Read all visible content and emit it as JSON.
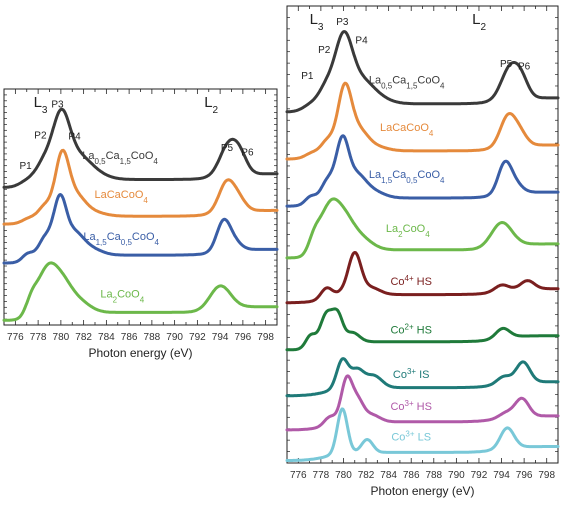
{
  "chart_data": [
    {
      "type": "line",
      "panel": "left",
      "xlabel": "Photon energy (eV)",
      "ylabel": "",
      "xlim": [
        775,
        799
      ],
      "xticks": [
        "776",
        "778",
        "780",
        "782",
        "784",
        "786",
        "788",
        "790",
        "792",
        "794",
        "796",
        "798"
      ],
      "grid": false,
      "legend": "none",
      "edge_labels": [
        {
          "main": "L",
          "sub": "3",
          "x": 777.6
        },
        {
          "main": "L",
          "sub": "2",
          "x": 792.6
        }
      ],
      "peak_labels": [
        {
          "text": "P1",
          "x": 776.9,
          "y": 6.8
        },
        {
          "text": "P2",
          "x": 778.2,
          "y": 8.15
        },
        {
          "text": "P3",
          "x": 779.7,
          "y": 9.5
        },
        {
          "text": "P4",
          "x": 781.2,
          "y": 8.1
        },
        {
          "text": "P5",
          "x": 794.6,
          "y": 7.6
        },
        {
          "text": "P6",
          "x": 796.4,
          "y": 7.4
        }
      ],
      "series": [
        {
          "name": "La0.5Ca1.5CoO4",
          "label_main": "La",
          "label_parts": [
            [
              "La",
              ""
            ],
            [
              "0,5",
              "sub"
            ],
            [
              "Ca",
              ""
            ],
            [
              "1,5",
              "sub"
            ],
            [
              "CoO",
              ""
            ],
            [
              "4",
              "sub"
            ]
          ],
          "label_x": 785.2,
          "label_y": 7.25,
          "color": "#3a3a3a",
          "offset": 6.0,
          "peaks": [
            [
              777.1,
              0.25,
              0.7
            ],
            [
              778.5,
              0.85,
              0.7
            ],
            [
              780.0,
              2.6,
              0.75
            ],
            [
              781.4,
              0.9,
              1.1
            ],
            [
              782.8,
              0.25,
              1.2
            ],
            [
              794.8,
              1.35,
              0.8
            ],
            [
              795.8,
              0.55,
              0.6
            ]
          ]
        },
        {
          "name": "LaCaCoO4",
          "label_parts": [
            [
              "LaCaCoO",
              ""
            ],
            [
              "4",
              "sub"
            ]
          ],
          "label_x": 785.3,
          "label_y": 5.55,
          "color": "#e58a3c",
          "offset": 4.4,
          "peaks": [
            [
              777.2,
              0.2,
              0.6
            ],
            [
              778.6,
              0.6,
              0.6
            ],
            [
              780.1,
              2.6,
              0.6
            ],
            [
              781.3,
              0.8,
              0.8
            ],
            [
              782.6,
              0.2,
              1.1
            ],
            [
              794.6,
              1.3,
              0.7
            ],
            [
              795.7,
              0.4,
              0.6
            ]
          ]
        },
        {
          "name": "La1.5Ca0.5CoO4",
          "label_parts": [
            [
              "La",
              ""
            ],
            [
              "1,5",
              "sub"
            ],
            [
              "Ca",
              ""
            ],
            [
              "0,5",
              "sub"
            ],
            [
              "CoO",
              ""
            ],
            [
              "4",
              "sub"
            ]
          ],
          "label_x": 785.3,
          "label_y": 3.7,
          "color": "#3a5ea6",
          "offset": 2.7,
          "peaks": [
            [
              777.1,
              0.35,
              0.5
            ],
            [
              778.6,
              0.9,
              0.6
            ],
            [
              779.9,
              2.3,
              0.55
            ],
            [
              781.1,
              0.9,
              0.8
            ],
            [
              782.5,
              0.3,
              1.0
            ],
            [
              794.3,
              1.3,
              0.6
            ],
            [
              795.3,
              0.3,
              0.6
            ]
          ]
        },
        {
          "name": "La2CoO4",
          "label_parts": [
            [
              "La",
              ""
            ],
            [
              "2",
              "sub"
            ],
            [
              "CoO",
              ""
            ],
            [
              "4",
              "sub"
            ]
          ],
          "label_x": 785.4,
          "label_y": 1.2,
          "color": "#6cb84a",
          "offset": 0.2,
          "peaks": [
            [
              777.4,
              0.6,
              0.5
            ],
            [
              778.8,
              2.0,
              0.9
            ],
            [
              780.2,
              0.9,
              0.8
            ],
            [
              781.5,
              0.5,
              1.0
            ],
            [
              794.0,
              1.0,
              0.9
            ]
          ]
        }
      ]
    },
    {
      "type": "line",
      "panel": "right",
      "xlabel": "Photon energy (eV)",
      "ylabel": "",
      "xlim": [
        775,
        799
      ],
      "xticks": [
        "776",
        "778",
        "780",
        "782",
        "784",
        "786",
        "788",
        "790",
        "792",
        "794",
        "796",
        "798"
      ],
      "grid": false,
      "legend": "none",
      "edge_labels": [
        {
          "main": "L",
          "sub": "3",
          "x": 777.0
        },
        {
          "main": "L",
          "sub": "2",
          "x": 791.4
        }
      ],
      "peak_labels": [
        {
          "text": "P1",
          "x": 776.8,
          "y": 15.8
        },
        {
          "text": "P2",
          "x": 778.3,
          "y": 16.9
        },
        {
          "text": "P3",
          "x": 779.9,
          "y": 18.1
        },
        {
          "text": "P4",
          "x": 781.6,
          "y": 17.3
        },
        {
          "text": "P5",
          "x": 794.4,
          "y": 16.3
        },
        {
          "text": "P6",
          "x": 796.0,
          "y": 16.2
        }
      ],
      "series": [
        {
          "name": "La0.5Ca1.5CoO4",
          "label_parts": [
            [
              "La",
              ""
            ],
            [
              "0,5",
              "sub"
            ],
            [
              "Ca",
              ""
            ],
            [
              "1,5",
              "sub"
            ],
            [
              "CoO",
              ""
            ],
            [
              "4",
              "sub"
            ]
          ],
          "label_x": 785.6,
          "label_y": 15.6,
          "color": "#3a3a3a",
          "offset": 14.4,
          "peaks": [
            [
              777.1,
              0.25,
              0.7
            ],
            [
              778.5,
              0.85,
              0.7
            ],
            [
              780.0,
              2.6,
              0.75
            ],
            [
              781.4,
              0.9,
              1.1
            ],
            [
              782.8,
              0.25,
              1.2
            ],
            [
              794.8,
              1.35,
              0.8
            ],
            [
              795.8,
              0.55,
              0.6
            ]
          ]
        },
        {
          "name": "LaCaCoO4",
          "label_parts": [
            [
              "LaCaCoO",
              ""
            ],
            [
              "4",
              "sub"
            ]
          ],
          "label_x": 785.6,
          "label_y": 13.6,
          "color": "#e58a3c",
          "offset": 12.4,
          "peaks": [
            [
              777.2,
              0.2,
              0.6
            ],
            [
              778.6,
              0.6,
              0.6
            ],
            [
              780.1,
              2.6,
              0.6
            ],
            [
              781.3,
              0.8,
              0.8
            ],
            [
              782.6,
              0.2,
              1.1
            ],
            [
              794.6,
              1.3,
              0.7
            ],
            [
              795.7,
              0.4,
              0.6
            ]
          ]
        },
        {
          "name": "La1.5Ca0.5CoO4",
          "label_parts": [
            [
              "La",
              ""
            ],
            [
              "1,5",
              "sub"
            ],
            [
              "Ca",
              ""
            ],
            [
              "0,5",
              "sub"
            ],
            [
              "CoO",
              ""
            ],
            [
              "4",
              "sub"
            ]
          ],
          "label_x": 785.6,
          "label_y": 11.6,
          "color": "#3a5ea6",
          "offset": 10.4,
          "peaks": [
            [
              777.1,
              0.35,
              0.5
            ],
            [
              778.6,
              0.9,
              0.6
            ],
            [
              779.9,
              2.3,
              0.55
            ],
            [
              781.1,
              0.9,
              0.8
            ],
            [
              782.5,
              0.3,
              1.0
            ],
            [
              794.3,
              1.3,
              0.6
            ],
            [
              795.3,
              0.3,
              0.6
            ]
          ]
        },
        {
          "name": "La2CoO4",
          "label_parts": [
            [
              "La",
              ""
            ],
            [
              "2",
              "sub"
            ],
            [
              "CoO",
              ""
            ],
            [
              "4",
              "sub"
            ]
          ],
          "label_x": 785.7,
          "label_y": 9.3,
          "color": "#6cb84a",
          "offset": 8.2,
          "peaks": [
            [
              777.4,
              0.6,
              0.5
            ],
            [
              778.8,
              2.0,
              0.9
            ],
            [
              780.2,
              0.9,
              0.8
            ],
            [
              781.5,
              0.5,
              1.0
            ],
            [
              794.0,
              1.0,
              0.9
            ]
          ]
        },
        {
          "name": "Co4+ HS",
          "label_parts": [
            [
              "Co",
              ""
            ],
            [
              "4+",
              "sup"
            ],
            [
              " HS",
              ""
            ]
          ],
          "label_x": 786.0,
          "label_y": 7.05,
          "color": "#7a1f1f",
          "offset": 6.3,
          "peaks": [
            [
              778.5,
              0.45,
              0.5
            ],
            [
              780.0,
              0.15,
              0.6
            ],
            [
              781.0,
              1.7,
              0.55
            ],
            [
              782.4,
              0.3,
              0.8
            ],
            [
              794.0,
              0.25,
              0.6
            ],
            [
              796.3,
              0.35,
              0.6
            ]
          ]
        },
        {
          "name": "Co2+ HS",
          "label_parts": [
            [
              "Co",
              ""
            ],
            [
              "2+",
              "sup"
            ],
            [
              " HS",
              ""
            ]
          ],
          "label_x": 786.0,
          "label_y": 5.0,
          "color": "#1f7a3a",
          "offset": 4.3,
          "peaks": [
            [
              777.1,
              0.55,
              0.45
            ],
            [
              778.5,
              1.35,
              0.55
            ],
            [
              779.5,
              1.1,
              0.45
            ],
            [
              780.8,
              0.4,
              0.6
            ],
            [
              794.1,
              0.4,
              0.6
            ]
          ]
        },
        {
          "name": "Co3+ IS",
          "label_parts": [
            [
              "Co",
              ""
            ],
            [
              "3+",
              "sup"
            ],
            [
              " IS",
              ""
            ]
          ],
          "label_x": 786.0,
          "label_y": 3.1,
          "color": "#1f7a78",
          "offset": 2.35,
          "peaks": [
            [
              779.9,
              1.2,
              0.5
            ],
            [
              781.2,
              0.75,
              0.6
            ],
            [
              782.7,
              0.5,
              0.7
            ],
            [
              794.2,
              0.3,
              0.6
            ],
            [
              795.9,
              0.85,
              0.6
            ]
          ]
        },
        {
          "name": "Co3+ HS",
          "label_parts": [
            [
              "Co",
              ""
            ],
            [
              "3+",
              "sup"
            ],
            [
              " HS",
              ""
            ]
          ],
          "label_x": 786.0,
          "label_y": 1.75,
          "color": "#b05aa8",
          "offset": 0.9,
          "peaks": [
            [
              778.8,
              0.35,
              0.5
            ],
            [
              780.3,
              1.85,
              0.5
            ],
            [
              781.3,
              0.8,
              0.5
            ],
            [
              782.5,
              0.3,
              0.7
            ],
            [
              794.4,
              0.2,
              0.6
            ],
            [
              795.8,
              0.75,
              0.6
            ]
          ]
        },
        {
          "name": "Co3+ LS",
          "label_parts": [
            [
              "Co",
              ""
            ],
            [
              "3+",
              "sup"
            ],
            [
              " LS",
              ""
            ]
          ],
          "label_x": 786.0,
          "label_y": 0.45,
          "color": "#79c8d8",
          "offset": -0.4,
          "peaks": [
            [
              779.9,
              1.9,
              0.45
            ],
            [
              782.1,
              0.55,
              0.5
            ],
            [
              794.5,
              0.85,
              0.6
            ]
          ]
        }
      ]
    }
  ]
}
